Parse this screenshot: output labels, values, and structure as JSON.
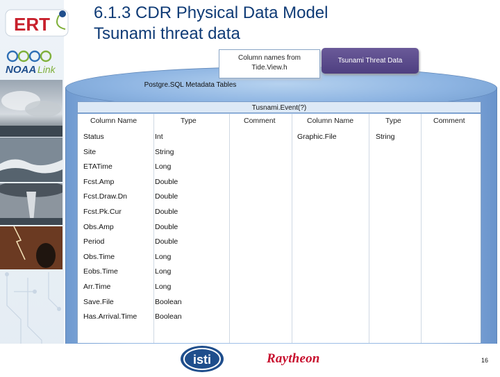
{
  "title": {
    "line1": "6.1.3 CDR Physical Data Model",
    "line2": "Tsunami threat data"
  },
  "logos": {
    "ert": "ERT",
    "noaa": "NOAA Link"
  },
  "callouts": {
    "column_names_line1": "Column names from",
    "column_names_line2": "Tide.View.h",
    "threat_data": "Tsunami Threat Data"
  },
  "cylinder_label": "Postgre.SQL Metadata Tables",
  "table": {
    "name": "Tusnami.Event(?)",
    "left_headers": [
      "Column Name",
      "Type",
      "Comment"
    ],
    "right_headers": [
      "Column Name",
      "Type",
      "Comment"
    ],
    "left_rows": [
      {
        "name": "Status",
        "type": "Int"
      },
      {
        "name": "Site",
        "type": "String"
      },
      {
        "name": "ETATime",
        "type": "Long"
      },
      {
        "name": "Fcst.Amp",
        "type": "Double"
      },
      {
        "name": "Fcst.Draw.Dn",
        "type": "Double"
      },
      {
        "name": "Fcst.Pk.Cur",
        "type": "Double"
      },
      {
        "name": "Obs.Amp",
        "type": "Double"
      },
      {
        "name": "Period",
        "type": "Double"
      },
      {
        "name": "Obs.Time",
        "type": "Long"
      },
      {
        "name": "Eobs.Time",
        "type": "Long"
      },
      {
        "name": "Arr.Time",
        "type": "Long"
      },
      {
        "name": "Save.File",
        "type": "Boolean"
      },
      {
        "name": "Has.Arrival.Time",
        "type": "Boolean"
      }
    ],
    "right_rows": [
      {
        "name": "Graphic.File",
        "type": "String"
      }
    ]
  },
  "footer": {
    "isti": "isti",
    "raytheon": "Raytheon",
    "page_number": "16"
  },
  "colors": {
    "title": "#0f3b76",
    "purple_box": "#5a4a8c",
    "cylinder": "#93b7e2"
  }
}
